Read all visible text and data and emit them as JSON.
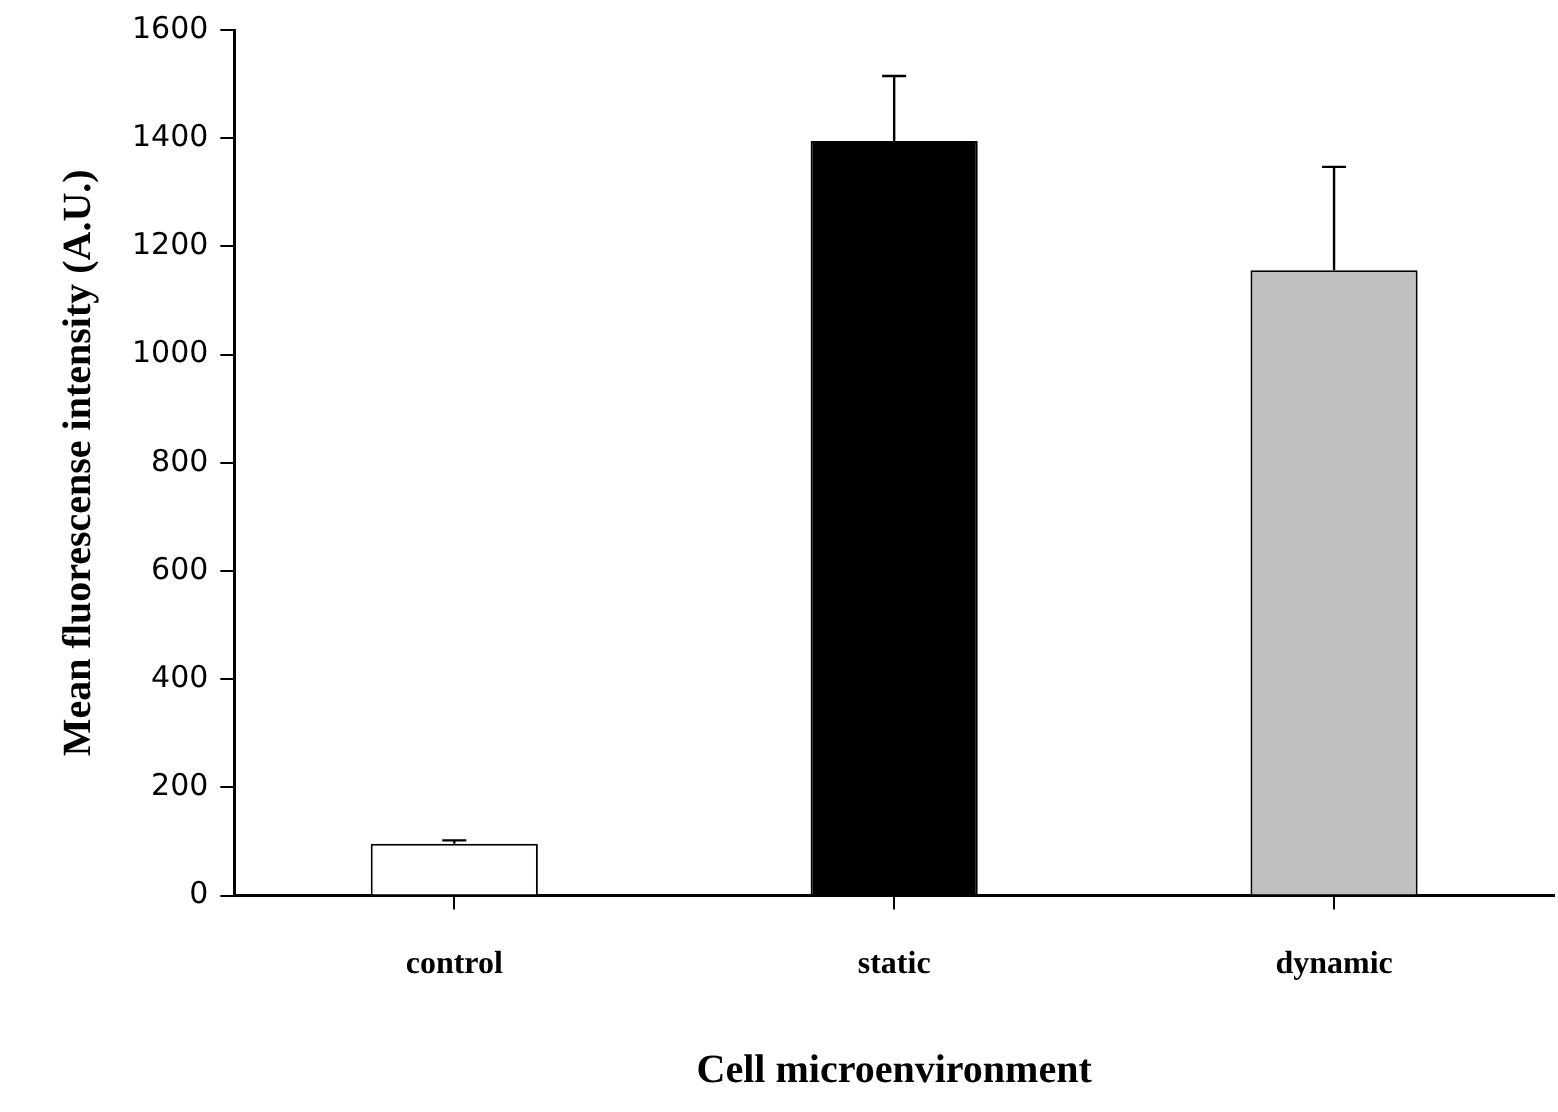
{
  "chart_data": {
    "type": "bar",
    "xlabel": "Cell microenvironment",
    "ylabel": "Mean fluorescense intensity (A.U.)",
    "categories": [
      "control",
      "static",
      "dynamic"
    ],
    "values": [
      96,
      1395,
      1156
    ],
    "colors": [
      "#ffffff",
      "#000000",
      "#c0c0c0"
    ],
    "errors": [
      [
        96,
        102
      ],
      [
        1395,
        1515
      ],
      [
        1156,
        1347
      ]
    ],
    "ylim": [
      0,
      1600
    ],
    "yticks": [
      0,
      200,
      400,
      600,
      800,
      1000,
      1200,
      1400,
      1600
    ],
    "grid": false,
    "legend": false
  }
}
